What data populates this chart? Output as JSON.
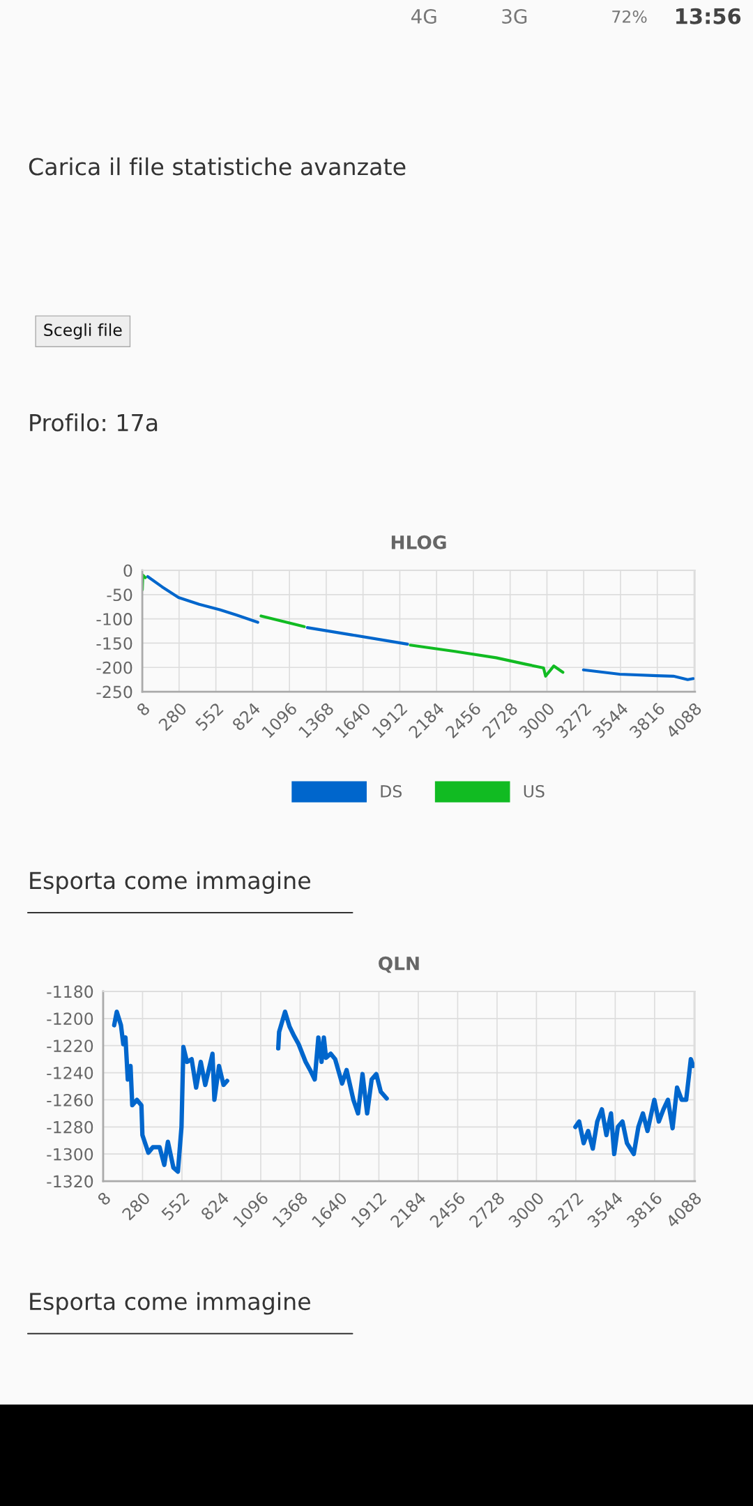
{
  "chart_data": [
    {
      "type": "line",
      "title": "HLOG",
      "xlim": [
        8,
        4095
      ],
      "xticks": [
        8,
        280,
        552,
        824,
        1096,
        1368,
        1640,
        1912,
        2184,
        2456,
        2728,
        3000,
        3272,
        3544,
        3816,
        4088
      ],
      "ylim": [
        -250,
        0
      ],
      "yticks": [
        0,
        -50,
        -100,
        -150,
        -200,
        -250
      ],
      "grid": true,
      "legend": "bottom",
      "marker": "none",
      "line_style": "solid",
      "series": [
        {
          "name": "DS",
          "color": "#0066cc",
          "x": [
            48,
            154,
            276,
            429,
            581,
            703,
            862,
            1050,
            1228,
            1557,
            1969,
            2600,
            3270,
            3538,
            3813,
            3935,
            4041,
            4082
          ],
          "values": [
            -13,
            -34,
            -56,
            -70,
            -81,
            -92,
            -107,
            null,
            -118,
            -133,
            -152,
            null,
            -205,
            -214,
            -217,
            -218,
            -225,
            -223
          ]
        },
        {
          "name": "US",
          "color": "#11bb22",
          "x": [
            8,
            12,
            30,
            400,
            886,
            1206,
            1600,
            1990,
            2319,
            2624,
            2837,
            2975,
            2990,
            3051,
            3118
          ],
          "values": [
            -40,
            -10,
            -15,
            null,
            -94,
            -116,
            null,
            -154,
            -167,
            -180,
            -193,
            -201,
            -218,
            -197,
            -210
          ]
        }
      ],
      "annotations": [
        "4G",
        "3G",
        "72%",
        "13:56",
        "Carica il file statistiche avanzate",
        "Scegli file",
        "Profilo: 17a",
        "Esporta come immagine"
      ]
    },
    {
      "type": "line",
      "title": "QLN",
      "xlim": [
        8,
        4095
      ],
      "xticks": [
        8,
        280,
        552,
        824,
        1096,
        1368,
        1640,
        1912,
        2184,
        2456,
        2728,
        3000,
        3272,
        3544,
        3816,
        4088
      ],
      "ylim": [
        -1320,
        -1180
      ],
      "yticks": [
        -1180,
        -1200,
        -1220,
        -1240,
        -1260,
        -1280,
        -1300,
        -1320
      ],
      "grid": true,
      "marker": "none",
      "line_style": "solid",
      "series": [
        {
          "color": "#0066cc",
          "x": [
            84,
            102,
            131,
            147,
            162,
            178,
            197,
            209,
            241,
            272,
            279,
            320,
            351,
            398,
            430,
            455,
            493,
            524,
            549,
            562,
            587,
            619,
            650,
            682,
            713,
            763,
            776,
            808,
            839,
            864,
            1000,
            1217,
            1223,
            1264,
            1295,
            1327,
            1358,
            1406,
            1437,
            1469,
            1494,
            1516,
            1532,
            1547,
            1579,
            1610,
            1658,
            1689,
            1736,
            1768,
            1799,
            1831,
            1862,
            1894,
            1925,
            1966,
            2600,
            3269,
            3295,
            3326,
            3357,
            3389,
            3420,
            3452,
            3483,
            3515,
            3537,
            3562,
            3594,
            3625,
            3672,
            3704,
            3735,
            3767,
            3814,
            3845,
            3877,
            3908,
            3940,
            3971,
            4003,
            4034,
            4066,
            4082
          ],
          "values": [
            -1205,
            -1195,
            -1205,
            -1219,
            -1214,
            -1245,
            -1235,
            -1264,
            -1260,
            -1264,
            -1286,
            -1299,
            -1295,
            -1295,
            -1308,
            -1291,
            -1310,
            -1313,
            -1280,
            -1221,
            -1232,
            -1230,
            -1251,
            -1232,
            -1249,
            -1226,
            -1260,
            -1235,
            -1249,
            -1246,
            null,
            -1222,
            -1210,
            -1195,
            -1206,
            -1213,
            -1219,
            -1232,
            -1238,
            -1245,
            -1214,
            -1232,
            -1214,
            -1229,
            -1226,
            -1230,
            -1248,
            -1238,
            -1260,
            -1270,
            -1241,
            -1270,
            -1245,
            -1241,
            -1254,
            -1259,
            null,
            -1280,
            -1276,
            -1292,
            -1283,
            -1296,
            -1276,
            -1267,
            -1286,
            -1270,
            -1300,
            -1280,
            -1276,
            -1292,
            -1300,
            -1280,
            -1270,
            -1283,
            -1260,
            -1276,
            -1267,
            -1260,
            -1281,
            -1251,
            -1260,
            -1260,
            -1230,
            -1235
          ]
        }
      ],
      "annotations": [
        "Esporta come immagine"
      ]
    }
  ]
}
